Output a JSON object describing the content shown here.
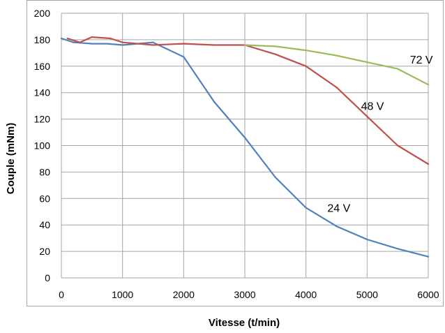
{
  "chart_data": {
    "type": "line",
    "title": "",
    "xlabel": "Vitesse (t/min)",
    "ylabel": "Couple (mNm)",
    "xlim": [
      0,
      6000
    ],
    "ylim": [
      0,
      200
    ],
    "xticks": [
      "0",
      "1000",
      "2000",
      "3000",
      "4000",
      "5000",
      "6000"
    ],
    "yticks": [
      "0",
      "20",
      "40",
      "60",
      "80",
      "100",
      "120",
      "140",
      "160",
      "180",
      "200"
    ],
    "grid": true,
    "legend": "none",
    "series": [
      {
        "name": "24 V",
        "color": "#4f81bd",
        "x": [
          0,
          200,
          500,
          750,
          1000,
          1250,
          1500,
          2000,
          2500,
          3000,
          3500,
          4000,
          4500,
          5000,
          5500,
          6000
        ],
        "y": [
          181,
          178,
          177,
          177,
          176,
          177,
          178,
          167,
          133,
          106,
          76,
          53,
          39,
          29,
          22,
          16
        ]
      },
      {
        "name": "48 V",
        "color": "#c0504d",
        "x": [
          100,
          300,
          500,
          800,
          1000,
          1500,
          2000,
          2500,
          3000,
          3500,
          4000,
          4500,
          5000,
          5500,
          6000
        ],
        "y": [
          181,
          178,
          182,
          181,
          178,
          176,
          177,
          176,
          176,
          169,
          160,
          144,
          122,
          100,
          86
        ]
      },
      {
        "name": "72 V",
        "color": "#9bbb59",
        "x": [
          3000,
          3500,
          4000,
          4500,
          5000,
          5500,
          6000
        ],
        "y": [
          176,
          175,
          172,
          168,
          163,
          158,
          146
        ]
      }
    ]
  }
}
